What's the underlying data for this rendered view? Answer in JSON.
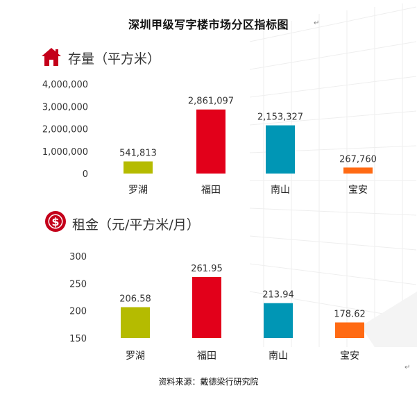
{
  "title": "深圳甲级写字楼市场分区指标图",
  "source": "资料来源：戴德梁行研究院",
  "chart_data": [
    {
      "type": "bar",
      "title": "存量（平方米）",
      "categories": [
        "罗湖",
        "福田",
        "南山",
        "宝安"
      ],
      "values": [
        541813,
        2861097,
        2153327,
        267760
      ],
      "value_labels": [
        "541,813",
        "2,861,097",
        "2,153,327",
        "267,760"
      ],
      "yticks": [
        "4,000,000",
        "3,000,000",
        "2,000,000",
        "1,000,000",
        "0"
      ],
      "ylim": [
        0,
        4000000
      ],
      "colors": [
        "#b5bb00",
        "#e2001a",
        "#0096b5",
        "#ff6a13"
      ],
      "icon": "house-icon",
      "grid": false
    },
    {
      "type": "bar",
      "title": "租金（元/平方米/月）",
      "categories": [
        "罗湖",
        "福田",
        "南山",
        "宝安"
      ],
      "values": [
        206.58,
        261.95,
        213.94,
        178.62
      ],
      "value_labels": [
        "206.58",
        "261.95",
        "213.94",
        "178.62"
      ],
      "yticks": [
        "300",
        "250",
        "200",
        "150"
      ],
      "ylim": [
        150,
        300
      ],
      "colors": [
        "#b5bb00",
        "#e2001a",
        "#0096b5",
        "#ff6a13"
      ],
      "icon": "dollar-icon",
      "grid": false
    }
  ]
}
